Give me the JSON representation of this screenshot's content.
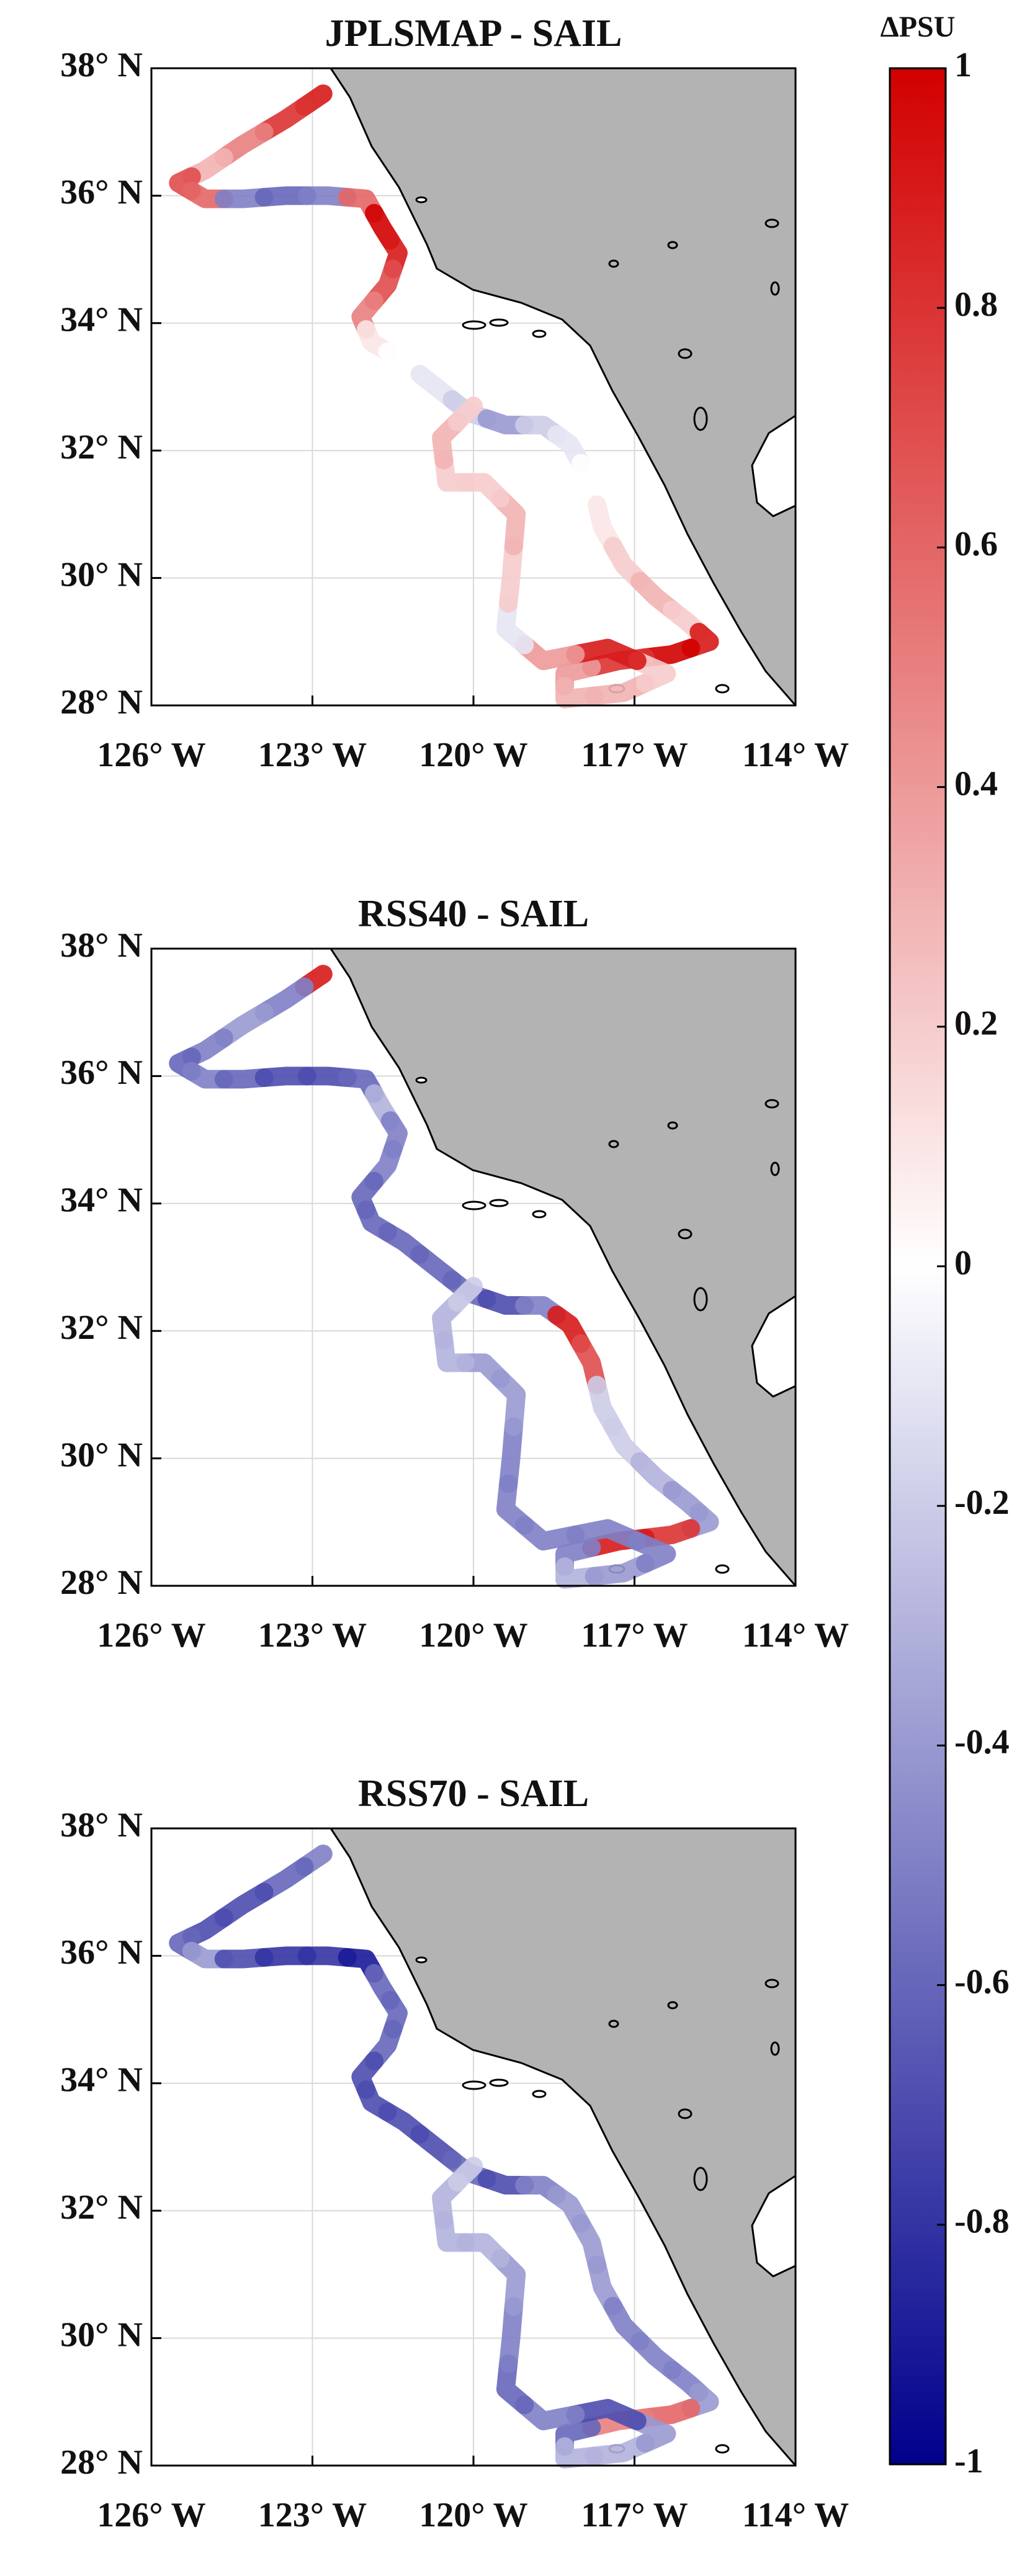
{
  "chart_data": [
    {
      "type": "scatter",
      "title": "JPLSMAP - SAIL",
      "x": [
        -122.8,
        -123.5,
        -124.3,
        -125.0,
        -125.5,
        -125.0,
        -124.3,
        -123.5,
        -122.7,
        -122.0,
        -121.7,
        -121.4,
        -121.6,
        -122.1,
        -121.9,
        -121.3,
        -120.7,
        -120.1,
        -119.4,
        -118.7,
        -118.2,
        -117.8,
        -117.6,
        -117.2,
        -116.6,
        -116.0,
        -115.6,
        -116.3,
        -117.3,
        -118.3,
        -118.3,
        -117.2,
        -116.4,
        -117.5,
        -118.7,
        -119.4,
        -119.3,
        -119.2,
        -119.8,
        -120.5,
        -120.6,
        -120.0
      ],
      "y": [
        37.6,
        37.2,
        36.8,
        36.4,
        36.2,
        35.95,
        35.95,
        36.0,
        36.0,
        35.95,
        35.5,
        35.1,
        34.6,
        34.1,
        33.7,
        33.4,
        33.0,
        32.6,
        32.4,
        32.4,
        32.1,
        31.5,
        30.8,
        30.2,
        29.7,
        29.3,
        29.0,
        28.8,
        28.7,
        28.5,
        28.1,
        28.2,
        28.5,
        28.9,
        28.7,
        29.2,
        30.0,
        31.0,
        31.5,
        31.5,
        32.2,
        32.7
      ],
      "values": [
        0.9,
        0.8,
        0.5,
        0.3,
        0.7,
        0.6,
        -0.5,
        -0.6,
        -0.5,
        0.6,
        1.0,
        0.9,
        0.7,
        0.5,
        0.1,
        0.0,
        -0.1,
        -0.2,
        -0.4,
        -0.2,
        -0.1,
        0.0,
        0.1,
        0.2,
        0.3,
        0.2,
        0.9,
        1.0,
        0.8,
        0.4,
        0.3,
        0.3,
        0.2,
        0.9,
        0.4,
        -0.1,
        0.2,
        0.3,
        0.2,
        0.2,
        0.3,
        0.2
      ],
      "xlim": [
        -126,
        -114
      ],
      "ylim": [
        28,
        38
      ],
      "xticks": [
        {
          "value": -126,
          "label": "126° W"
        },
        {
          "value": -123,
          "label": "123° W"
        },
        {
          "value": -120,
          "label": "120° W"
        },
        {
          "value": -117,
          "label": "117° W"
        },
        {
          "value": -114,
          "label": "114° W"
        }
      ],
      "yticks": [
        {
          "value": 28,
          "label": "28° N"
        },
        {
          "value": 30,
          "label": "30° N"
        },
        {
          "value": 32,
          "label": "32° N"
        },
        {
          "value": 34,
          "label": "34° N"
        },
        {
          "value": 36,
          "label": "36° N"
        },
        {
          "value": 38,
          "label": "38° N"
        }
      ],
      "grid": true
    },
    {
      "type": "scatter",
      "title": "RSS40 - SAIL",
      "x": [
        -122.8,
        -123.5,
        -124.3,
        -125.0,
        -125.5,
        -125.0,
        -124.3,
        -123.5,
        -122.7,
        -122.0,
        -121.7,
        -121.4,
        -121.6,
        -122.1,
        -121.9,
        -121.3,
        -120.7,
        -120.1,
        -119.4,
        -118.7,
        -118.2,
        -117.8,
        -117.6,
        -117.2,
        -116.6,
        -116.0,
        -115.6,
        -116.3,
        -117.3,
        -118.3,
        -118.3,
        -117.2,
        -116.4,
        -117.5,
        -118.7,
        -119.4,
        -119.3,
        -119.2,
        -119.8,
        -120.5,
        -120.6,
        -120.0
      ],
      "y": [
        37.6,
        37.2,
        36.8,
        36.4,
        36.2,
        35.95,
        35.95,
        36.0,
        36.0,
        35.95,
        35.5,
        35.1,
        34.6,
        34.1,
        33.7,
        33.4,
        33.0,
        32.6,
        32.4,
        32.4,
        32.1,
        31.5,
        30.8,
        30.2,
        29.7,
        29.3,
        29.0,
        28.8,
        28.7,
        28.5,
        28.1,
        28.2,
        28.5,
        28.9,
        28.7,
        29.2,
        30.0,
        31.0,
        31.5,
        31.5,
        32.2,
        32.7
      ],
      "values": [
        0.9,
        -0.5,
        -0.4,
        -0.5,
        -0.6,
        -0.5,
        -0.6,
        -0.7,
        -0.7,
        -0.6,
        -0.3,
        -0.5,
        -0.5,
        -0.6,
        -0.6,
        -0.6,
        -0.6,
        -0.6,
        -0.7,
        -0.5,
        0.9,
        0.7,
        -0.2,
        -0.2,
        -0.3,
        -0.4,
        -0.4,
        0.8,
        0.9,
        -0.5,
        -0.3,
        -0.4,
        -0.5,
        -0.5,
        -0.5,
        -0.5,
        -0.5,
        -0.4,
        -0.4,
        -0.3,
        -0.3,
        -0.2
      ],
      "xlim": [
        -126,
        -114
      ],
      "ylim": [
        28,
        38
      ],
      "xticks": [
        {
          "value": -126,
          "label": "126° W"
        },
        {
          "value": -123,
          "label": "123° W"
        },
        {
          "value": -120,
          "label": "120° W"
        },
        {
          "value": -117,
          "label": "117° W"
        },
        {
          "value": -114,
          "label": "114° W"
        }
      ],
      "yticks": [
        {
          "value": 28,
          "label": "28° N"
        },
        {
          "value": 30,
          "label": "30° N"
        },
        {
          "value": 32,
          "label": "32° N"
        },
        {
          "value": 34,
          "label": "34° N"
        },
        {
          "value": 36,
          "label": "36° N"
        },
        {
          "value": 38,
          "label": "38° N"
        }
      ],
      "grid": true
    },
    {
      "type": "scatter",
      "title": "RSS70 - SAIL",
      "x": [
        -122.8,
        -123.5,
        -124.3,
        -125.0,
        -125.5,
        -125.0,
        -124.3,
        -123.5,
        -122.7,
        -122.0,
        -121.7,
        -121.4,
        -121.6,
        -122.1,
        -121.9,
        -121.3,
        -120.7,
        -120.1,
        -119.4,
        -118.7,
        -118.2,
        -117.8,
        -117.6,
        -117.2,
        -116.6,
        -116.0,
        -115.6,
        -116.3,
        -117.3,
        -118.3,
        -118.3,
        -117.2,
        -116.4,
        -117.5,
        -118.7,
        -119.4,
        -119.3,
        -119.2,
        -119.8,
        -120.5,
        -120.6,
        -120.0
      ],
      "y": [
        37.6,
        37.2,
        36.8,
        36.4,
        36.2,
        35.95,
        35.95,
        36.0,
        36.0,
        35.95,
        35.5,
        35.1,
        34.6,
        34.1,
        33.7,
        33.4,
        33.0,
        32.6,
        32.4,
        32.4,
        32.1,
        31.5,
        30.8,
        30.2,
        29.7,
        29.3,
        29.0,
        28.8,
        28.7,
        28.5,
        28.1,
        28.2,
        28.5,
        28.9,
        28.7,
        29.2,
        30.0,
        31.0,
        31.5,
        31.5,
        32.2,
        32.7
      ],
      "values": [
        -0.5,
        -0.6,
        -0.7,
        -0.7,
        -0.6,
        -0.4,
        -0.7,
        -0.8,
        -0.8,
        -0.9,
        -0.6,
        -0.6,
        -0.6,
        -0.7,
        -0.7,
        -0.7,
        -0.7,
        -0.6,
        -0.7,
        -0.5,
        -0.4,
        -0.4,
        -0.4,
        -0.5,
        -0.5,
        -0.5,
        -0.4,
        0.6,
        0.5,
        -0.6,
        -0.3,
        -0.3,
        -0.4,
        -0.7,
        -0.5,
        -0.6,
        -0.5,
        -0.4,
        -0.3,
        -0.3,
        -0.3,
        -0.2
      ],
      "xlim": [
        -126,
        -114
      ],
      "ylim": [
        28,
        38
      ],
      "xticks": [
        {
          "value": -126,
          "label": "126° W"
        },
        {
          "value": -123,
          "label": "123° W"
        },
        {
          "value": -120,
          "label": "120° W"
        },
        {
          "value": -117,
          "label": "117° W"
        },
        {
          "value": -114,
          "label": "114° W"
        }
      ],
      "yticks": [
        {
          "value": 28,
          "label": "28° N"
        },
        {
          "value": 30,
          "label": "30° N"
        },
        {
          "value": 32,
          "label": "32° N"
        },
        {
          "value": 34,
          "label": "34° N"
        },
        {
          "value": 36,
          "label": "36° N"
        },
        {
          "value": 38,
          "label": "38° N"
        }
      ],
      "grid": true
    },
    {
      "type": "colorbar",
      "title": "ΔPSU",
      "ylim": [
        -1,
        1
      ],
      "yticks": [
        -1,
        -0.8,
        -0.6,
        -0.4,
        -0.2,
        0,
        0.2,
        0.4,
        0.6,
        0.8,
        1
      ],
      "colors": [
        "#00008c",
        "#ffffff",
        "#d20000"
      ]
    }
  ]
}
